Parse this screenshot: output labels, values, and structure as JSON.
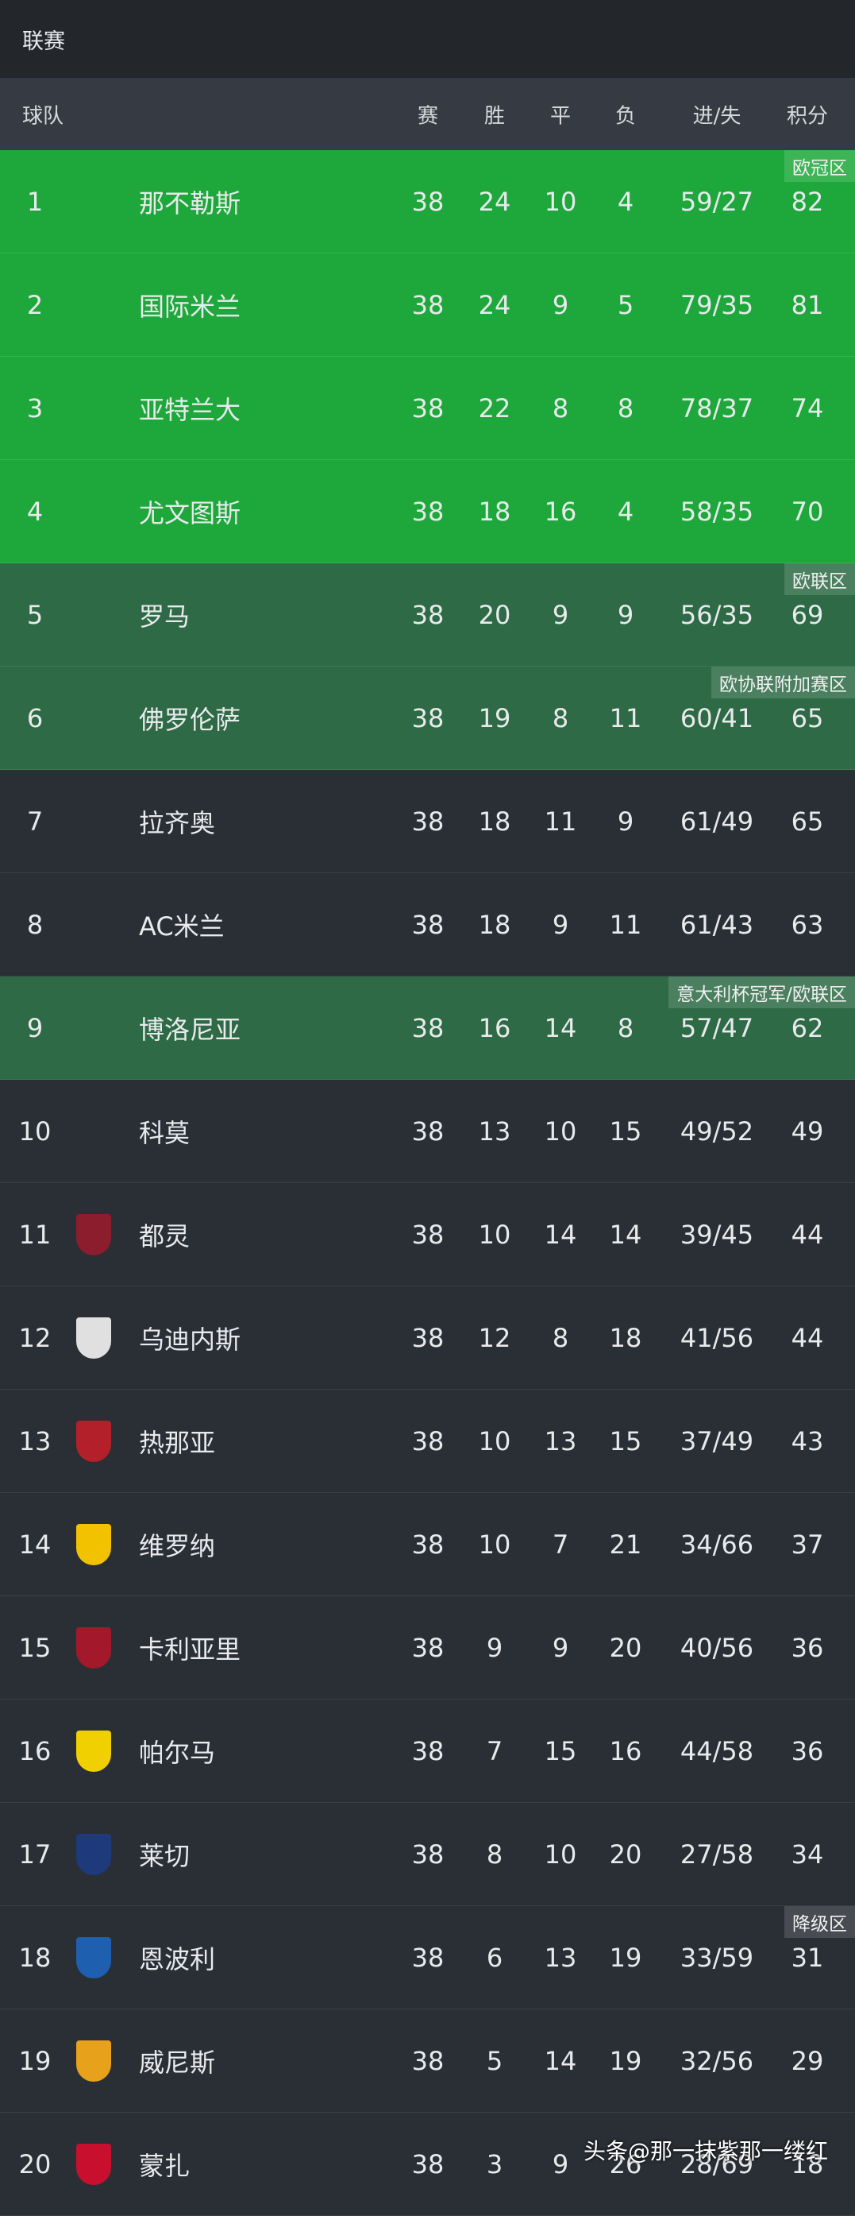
{
  "header": {
    "title": "联赛"
  },
  "columns": [
    "球队",
    "赛",
    "胜",
    "平",
    "负",
    "进/失",
    "积分"
  ],
  "rows": [
    {
      "rank": 1,
      "team": "那不勒斯",
      "played": 38,
      "won": 24,
      "drawn": 10,
      "lost": 4,
      "goals": "59/27",
      "points": 82,
      "zone": "欧冠区"
    },
    {
      "rank": 2,
      "team": "国际米兰",
      "played": 38,
      "won": 24,
      "drawn": 9,
      "lost": 5,
      "goals": "79/35",
      "points": 81
    },
    {
      "rank": 3,
      "team": "亚特兰大",
      "played": 38,
      "won": 22,
      "drawn": 8,
      "lost": 8,
      "goals": "78/37",
      "points": 74
    },
    {
      "rank": 4,
      "team": "尤文图斯",
      "played": 38,
      "won": 18,
      "drawn": 16,
      "lost": 4,
      "goals": "58/35",
      "points": 70
    },
    {
      "rank": 5,
      "team": "罗马",
      "played": 38,
      "won": 20,
      "drawn": 9,
      "lost": 9,
      "goals": "56/35",
      "points": 69,
      "zone": "欧联区"
    },
    {
      "rank": 6,
      "team": "佛罗伦萨",
      "played": 38,
      "won": 19,
      "drawn": 8,
      "lost": 11,
      "goals": "60/41",
      "points": 65,
      "zone": "欧协联附加赛区"
    },
    {
      "rank": 7,
      "team": "拉齐奥",
      "played": 38,
      "won": 18,
      "drawn": 11,
      "lost": 9,
      "goals": "61/49",
      "points": 65
    },
    {
      "rank": 8,
      "team": "AC米兰",
      "played": 38,
      "won": 18,
      "drawn": 9,
      "lost": 11,
      "goals": "61/43",
      "points": 63
    },
    {
      "rank": 9,
      "team": "博洛尼亚",
      "played": 38,
      "won": 16,
      "drawn": 14,
      "lost": 8,
      "goals": "57/47",
      "points": 62,
      "zone": "意大利杯冠军/欧联区"
    },
    {
      "rank": 10,
      "team": "科莫",
      "played": 38,
      "won": 13,
      "drawn": 10,
      "lost": 15,
      "goals": "49/52",
      "points": 49
    },
    {
      "rank": 11,
      "team": "都灵",
      "played": 38,
      "won": 10,
      "drawn": 14,
      "lost": 14,
      "goals": "39/45",
      "points": 44
    },
    {
      "rank": 12,
      "team": "乌迪内斯",
      "played": 38,
      "won": 12,
      "drawn": 8,
      "lost": 18,
      "goals": "41/56",
      "points": 44
    },
    {
      "rank": 13,
      "team": "热那亚",
      "played": 38,
      "won": 10,
      "drawn": 13,
      "lost": 15,
      "goals": "37/49",
      "points": 43
    },
    {
      "rank": 14,
      "team": "维罗纳",
      "played": 38,
      "won": 10,
      "drawn": 7,
      "lost": 21,
      "goals": "34/66",
      "points": 37
    },
    {
      "rank": 15,
      "team": "卡利亚里",
      "played": 38,
      "won": 9,
      "drawn": 9,
      "lost": 20,
      "goals": "40/56",
      "points": 36
    },
    {
      "rank": 16,
      "team": "帕尔马",
      "played": 38,
      "won": 7,
      "drawn": 15,
      "lost": 16,
      "goals": "44/58",
      "points": 36
    },
    {
      "rank": 17,
      "team": "莱切",
      "played": 38,
      "won": 8,
      "drawn": 10,
      "lost": 20,
      "goals": "27/58",
      "points": 34
    },
    {
      "rank": 18,
      "team": "恩波利",
      "played": 38,
      "won": 6,
      "drawn": 13,
      "lost": 19,
      "goals": "33/59",
      "points": 31,
      "zone": "降级区"
    },
    {
      "rank": 19,
      "team": "威尼斯",
      "played": 38,
      "won": 5,
      "drawn": 14,
      "lost": 19,
      "goals": "32/56",
      "points": 29
    },
    {
      "rank": 20,
      "team": "蒙扎",
      "played": 38,
      "won": 3,
      "drawn": 9,
      "lost": 26,
      "goals": "28/69",
      "points": 18
    }
  ],
  "credit": "头条@那一抹紫那一缕红"
}
